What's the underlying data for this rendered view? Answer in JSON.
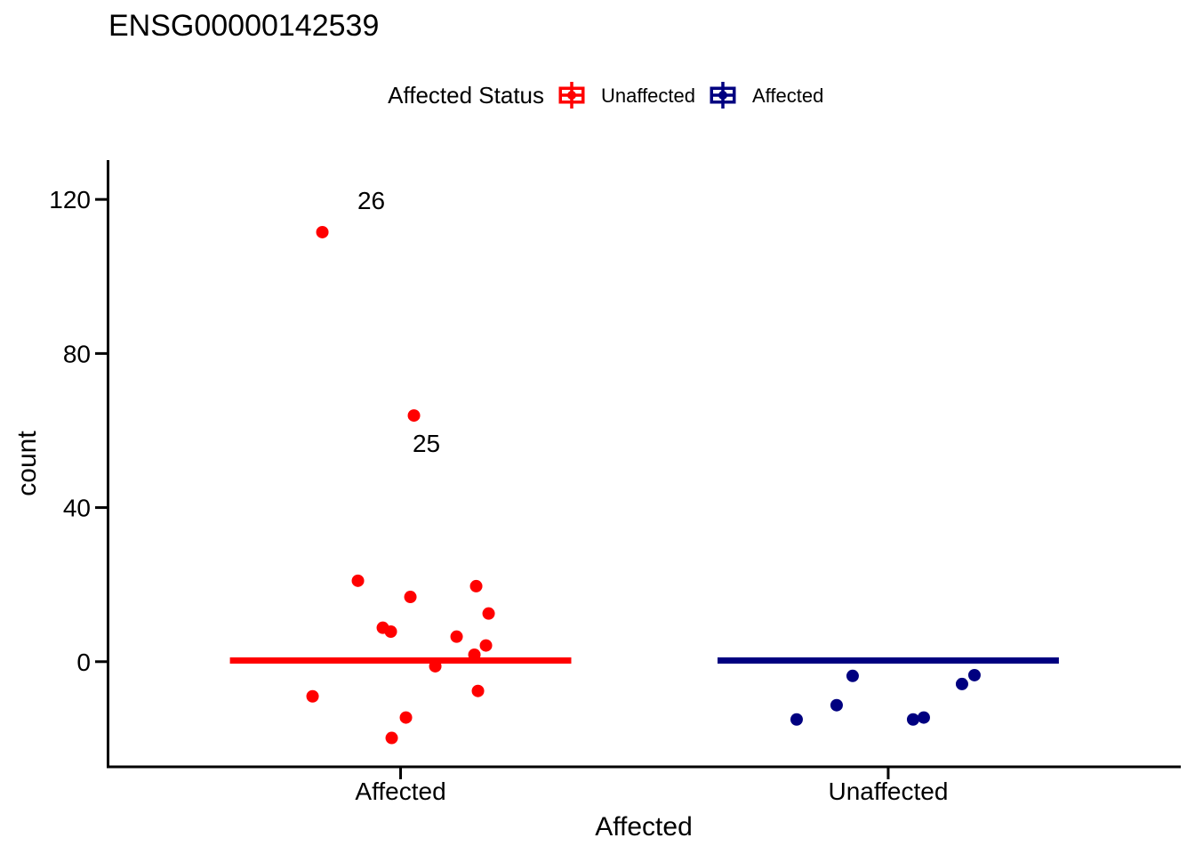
{
  "page": {
    "background": "#ffffff",
    "text_color": "#000000"
  },
  "chart_data": {
    "type": "scatter",
    "subtype": "jittered-points-with-median-crossbar",
    "title": "ENSG00000142539",
    "xlabel": "Affected",
    "ylabel": "count",
    "categories": [
      "Affected",
      "Unaffected"
    ],
    "y_ticks": [
      0,
      40,
      80,
      120
    ],
    "ylim": [
      -27.3,
      130.2
    ],
    "grid": "off",
    "axis_color": "#000000",
    "legend": {
      "title": "Affected Status",
      "position": "top",
      "key_glyph": "crossbar",
      "entries": [
        {
          "label": "Unaffected",
          "color": "#FF0000"
        },
        {
          "label": "Affected",
          "color": "#000080"
        }
      ]
    },
    "series": [
      {
        "name": "Unaffected",
        "color": "#FF0000",
        "category": "Affected",
        "crossbar_y": 0.3,
        "points": [
          {
            "dx": -88,
            "count": 111.5
          },
          {
            "dx": 15,
            "count": 63.9
          },
          {
            "dx": -48,
            "count": 21.0
          },
          {
            "dx": 85,
            "count": 19.6
          },
          {
            "dx": 11,
            "count": 16.8
          },
          {
            "dx": 99,
            "count": 12.5
          },
          {
            "dx": -20,
            "count": 8.8
          },
          {
            "dx": -11,
            "count": 7.8
          },
          {
            "dx": 63,
            "count": 6.5
          },
          {
            "dx": 96,
            "count": 4.2
          },
          {
            "dx": 83,
            "count": 1.8
          },
          {
            "dx": 39,
            "count": -1.2
          },
          {
            "dx": 87,
            "count": -7.6
          },
          {
            "dx": -99,
            "count": -9.0
          },
          {
            "dx": 6,
            "count": -14.5
          },
          {
            "dx": -10,
            "count": -19.8
          }
        ]
      },
      {
        "name": "Affected",
        "color": "#000080",
        "category": "Unaffected",
        "crossbar_y": 0.3,
        "points": [
          {
            "dx": -40,
            "count": -3.7
          },
          {
            "dx": 97,
            "count": -3.5
          },
          {
            "dx": 83,
            "count": -5.8
          },
          {
            "dx": -58,
            "count": -11.3
          },
          {
            "dx": -103,
            "count": -15.0
          },
          {
            "dx": 28,
            "count": -15.0
          },
          {
            "dx": 40,
            "count": -14.5
          }
        ]
      }
    ],
    "annotations": [
      {
        "text": "26",
        "category": "Affected",
        "dx": -33,
        "count": 119.8
      },
      {
        "text": "25",
        "category": "Affected",
        "dx": 29,
        "count": 56.8
      }
    ]
  }
}
